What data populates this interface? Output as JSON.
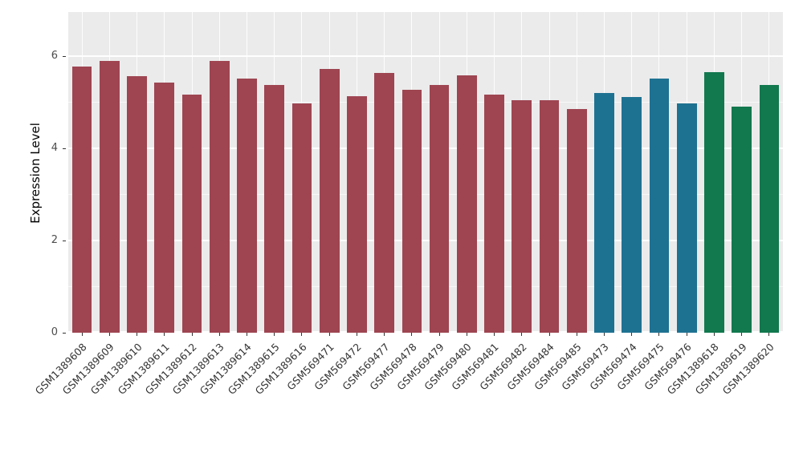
{
  "chart_data": {
    "type": "bar",
    "title": "",
    "xlabel": "",
    "ylabel": "Expression Level",
    "ylim": [
      0,
      6.96
    ],
    "yticks": [
      0,
      2,
      4,
      6
    ],
    "minor_ticks": [
      1,
      3,
      5
    ],
    "grid": "on",
    "legend": "none",
    "panel_background": "#ebebeb",
    "categories": [
      "GSM1389608",
      "GSM1389609",
      "GSM1389610",
      "GSM1389611",
      "GSM1389612",
      "GSM1389613",
      "GSM1389614",
      "GSM1389615",
      "GSM1389616",
      "GSM569471",
      "GSM569472",
      "GSM569477",
      "GSM569478",
      "GSM569479",
      "GSM569480",
      "GSM569481",
      "GSM569482",
      "GSM569484",
      "GSM569485",
      "GSM569473",
      "GSM569474",
      "GSM569475",
      "GSM569476",
      "GSM1389618",
      "GSM1389619",
      "GSM1389620"
    ],
    "values": [
      5.78,
      5.9,
      5.57,
      5.43,
      5.17,
      5.9,
      5.52,
      5.38,
      4.97,
      5.72,
      5.13,
      5.63,
      5.27,
      5.38,
      5.58,
      5.17,
      5.05,
      5.05,
      4.85,
      5.2,
      5.12,
      5.52,
      4.97,
      5.65,
      4.9,
      5.37
    ],
    "groups": [
      "a",
      "a",
      "a",
      "a",
      "a",
      "a",
      "a",
      "a",
      "a",
      "a",
      "a",
      "a",
      "a",
      "a",
      "a",
      "a",
      "a",
      "a",
      "a",
      "b",
      "b",
      "b",
      "b",
      "c",
      "c",
      "c"
    ],
    "colors": {
      "a": "#9e4551",
      "b": "#1e7291",
      "c": "#12784e"
    }
  }
}
